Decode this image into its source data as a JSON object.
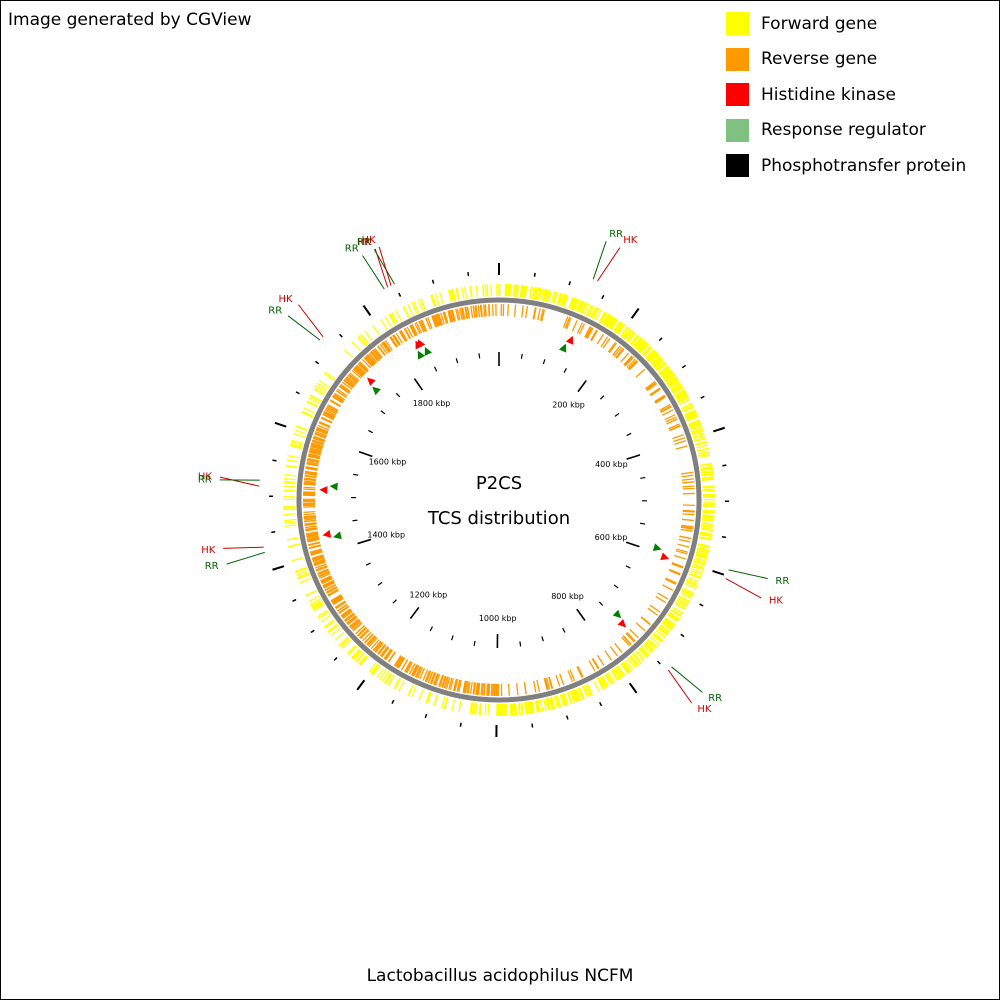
{
  "credit": "Image generated by CGView",
  "title": "Lactobacillus acidophilus NCFM",
  "center_title": "P2CS",
  "center_subtitle": "TCS distribution",
  "legend": [
    {
      "label": "Forward gene",
      "color": "#ffff00"
    },
    {
      "label": "Reverse gene",
      "color": "#ff9900"
    },
    {
      "label": "Histidine kinase",
      "color": "#ff0000"
    },
    {
      "label": "Response regulator",
      "color": "#80c080"
    },
    {
      "label": "Phosphotransfer protein",
      "color": "#000000"
    }
  ],
  "colors": {
    "forward": "#ffff00",
    "reverse": "#ff9900",
    "backbone": "#808080",
    "hk": "#ff0000",
    "rr_marker": "#008000",
    "rr_label": "#006400",
    "hk_label": "#cc0000"
  },
  "genome": {
    "length_kbp": 1993,
    "tick_labels": [
      {
        "kbp": 200,
        "text": "200 kbp"
      },
      {
        "kbp": 400,
        "text": "400 kbp"
      },
      {
        "kbp": 600,
        "text": "600 kbp"
      },
      {
        "kbp": 800,
        "text": "800 kbp"
      },
      {
        "kbp": 1000,
        "text": "1000 kbp"
      },
      {
        "kbp": 1200,
        "text": "1200 kbp"
      },
      {
        "kbp": 1400,
        "text": "1400 kbp"
      },
      {
        "kbp": 1600,
        "text": "1600 kbp"
      },
      {
        "kbp": 1800,
        "text": "1800 kbp"
      }
    ]
  },
  "features": [
    {
      "type": "HK",
      "label": "HK",
      "kbp": 134
    },
    {
      "type": "RR",
      "label": "RR",
      "kbp": 128
    },
    {
      "type": "HK",
      "label": "HK",
      "kbp": 604
    },
    {
      "type": "RR",
      "label": "RR",
      "kbp": 592
    },
    {
      "type": "HK",
      "label": "HK",
      "kbp": 748
    },
    {
      "type": "RR",
      "label": "RR",
      "kbp": 742
    },
    {
      "type": "HK",
      "label": "HK",
      "kbp": 1432
    },
    {
      "type": "RR",
      "label": "RR",
      "kbp": 1425
    },
    {
      "type": "HK",
      "label": "HK",
      "kbp": 1513
    },
    {
      "type": "RR",
      "label": "RR",
      "kbp": 1521
    },
    {
      "type": "HK",
      "label": "HK",
      "kbp": 1732
    },
    {
      "type": "RR",
      "label": "RR",
      "kbp": 1726
    },
    {
      "type": "HK",
      "label": "HK",
      "kbp": 1840
    },
    {
      "type": "RR",
      "label": "RR",
      "kbp": 1850
    },
    {
      "type": "HK",
      "label": "HK",
      "kbp": 1845
    },
    {
      "type": "RR",
      "label": "RR",
      "kbp": 1835
    }
  ]
}
